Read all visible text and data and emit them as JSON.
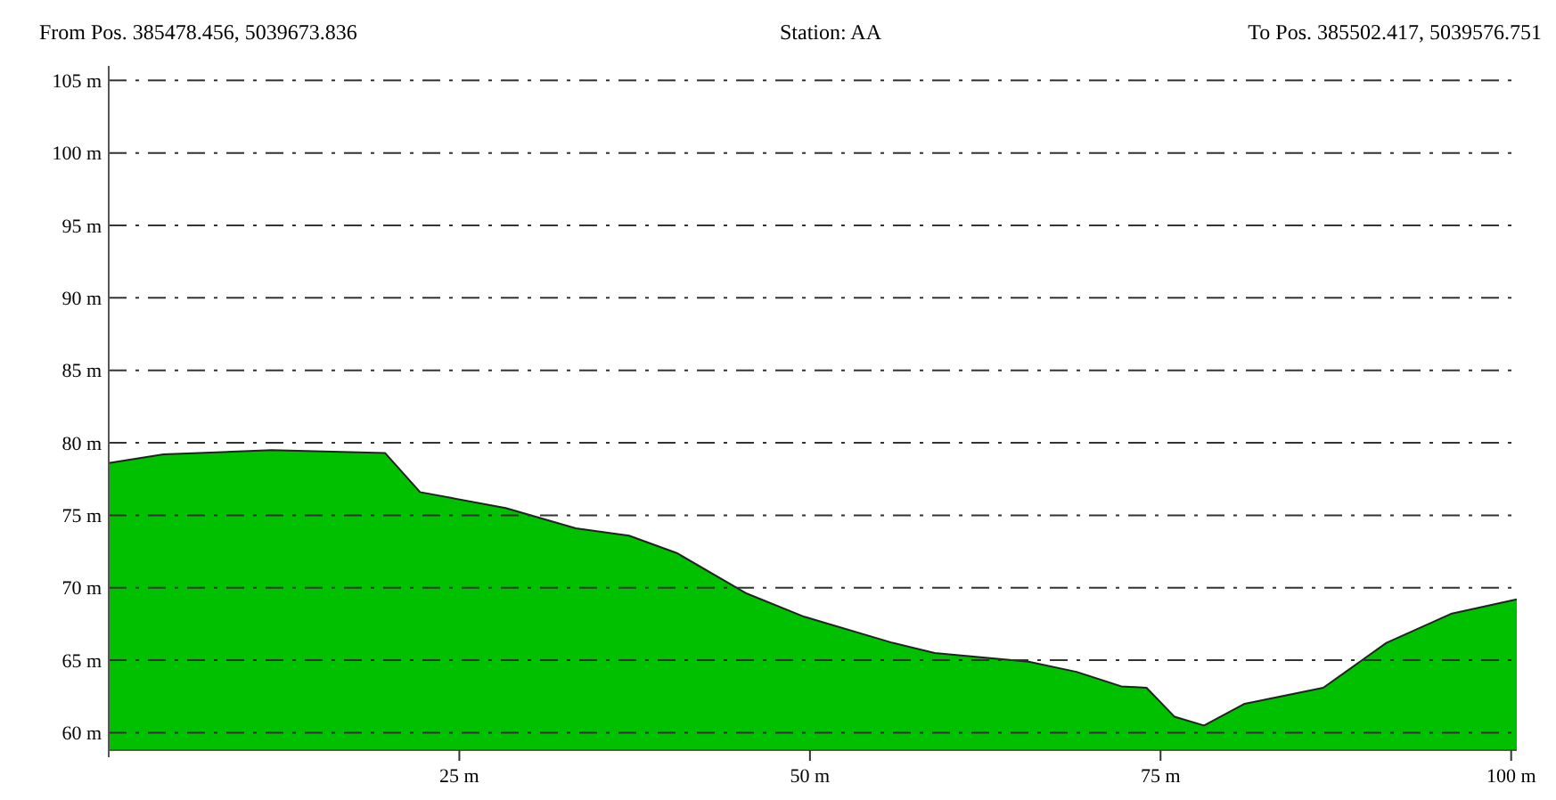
{
  "chart_data": {
    "type": "area",
    "title": "Station: AA",
    "annotations": [
      "From Pos. 385478.456, 5039673.836",
      "To Pos. 385502.417, 5039576.751"
    ],
    "x": [
      0,
      3.9,
      11.6,
      19.7,
      22.2,
      28.3,
      33.3,
      37.1,
      40.5,
      45.5,
      49.6,
      55.9,
      58.9,
      65.6,
      69,
      72.2,
      74,
      76,
      78.1,
      81,
      86.6,
      91.1,
      95.7,
      100.4
    ],
    "series": [
      {
        "color": "#00c000",
        "values": [
          78.6,
          79.2,
          79.5,
          79.3,
          76.6,
          75.5,
          74.1,
          73.6,
          72.4,
          69.6,
          68,
          66.2,
          65.5,
          64.9,
          64.2,
          63.2,
          63.1,
          61.1,
          60.5,
          62,
          63.1,
          66.2,
          68.2,
          69.2
        ]
      }
    ],
    "xlim": [
      0,
      100.4
    ],
    "ylim": [
      58.8,
      106
    ],
    "xticks": [
      {
        "value": 25,
        "label": "25 m"
      },
      {
        "value": 50,
        "label": "50 m"
      },
      {
        "value": 75,
        "label": "75 m"
      },
      {
        "value": 100,
        "label": "100 m"
      }
    ],
    "yticks": [
      {
        "value": 60,
        "label": "60 m"
      },
      {
        "value": 65,
        "label": "65 m"
      },
      {
        "value": 70,
        "label": "70 m"
      },
      {
        "value": 75,
        "label": "75 m"
      },
      {
        "value": 80,
        "label": "80 m"
      },
      {
        "value": 85,
        "label": "85 m"
      },
      {
        "value": 90,
        "label": "90 m"
      },
      {
        "value": 95,
        "label": "95 m"
      },
      {
        "value": 100,
        "label": "100 m"
      },
      {
        "value": 105,
        "label": "105 m"
      }
    ],
    "grid": "y",
    "line_style": "dashdot"
  }
}
